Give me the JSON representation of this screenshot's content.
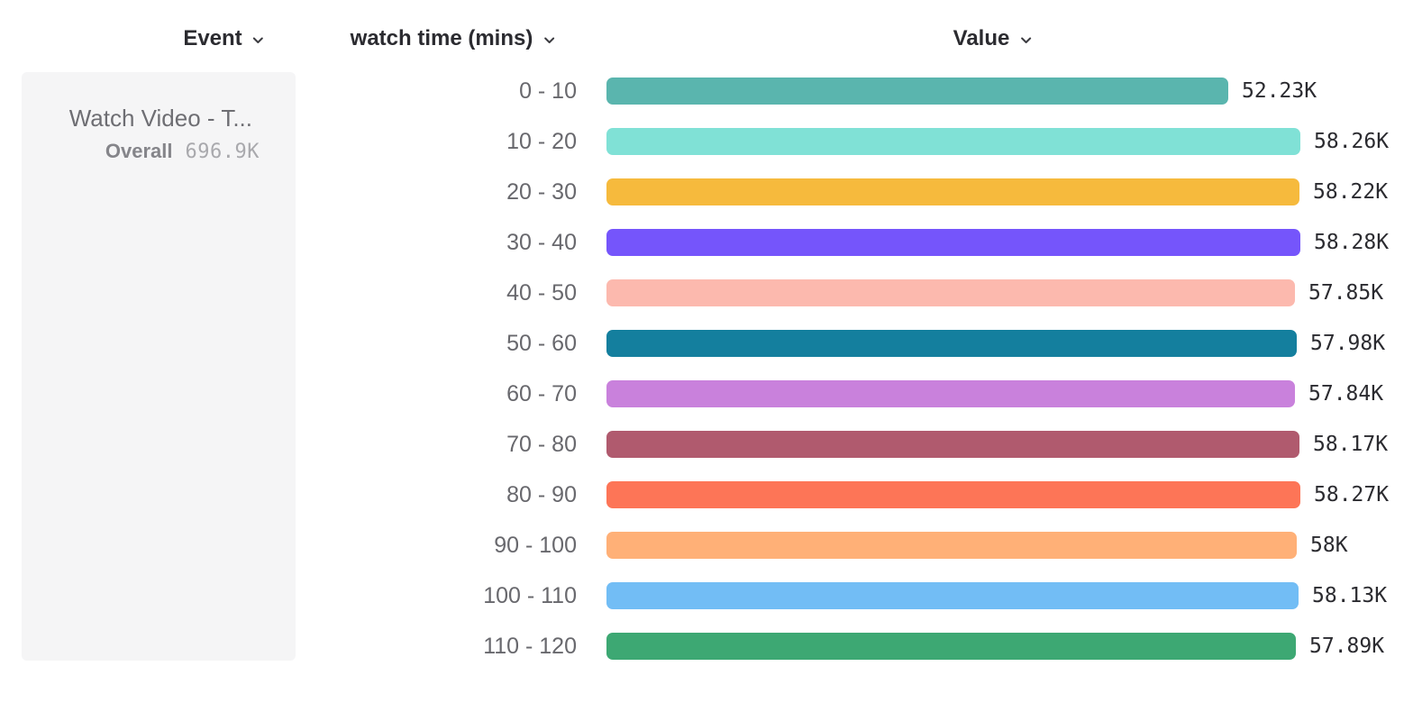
{
  "columns": [
    {
      "id": "event",
      "label": "Event"
    },
    {
      "id": "breakdown",
      "label": "watch time (mins)"
    },
    {
      "id": "value",
      "label": "Value"
    }
  ],
  "legend": {
    "event_name": "Watch Video - T...",
    "overall_label": "Overall",
    "overall_value": "696.9K"
  },
  "chart_data": {
    "type": "bar",
    "orientation": "horizontal",
    "title": "",
    "xlabel": "watch time (mins)",
    "ylabel": "Value",
    "xlim": [
      0,
      58280
    ],
    "grid": false,
    "categories": [
      "0 - 10",
      "10 - 20",
      "20 - 30",
      "30 - 40",
      "40 - 50",
      "50 - 60",
      "60 - 70",
      "70 - 80",
      "80 - 90",
      "90 - 100",
      "100 - 110",
      "110 - 120"
    ],
    "values": [
      52230,
      58260,
      58220,
      58280,
      57850,
      57980,
      57840,
      58170,
      58270,
      58000,
      58130,
      57890
    ],
    "value_labels": [
      "52.23K",
      "58.26K",
      "58.22K",
      "58.28K",
      "57.85K",
      "57.98K",
      "57.84K",
      "58.17K",
      "58.27K",
      "58K",
      "58.13K",
      "57.89K"
    ],
    "bar_colors": [
      "#5ab5ae",
      "#80e1d6",
      "#f6ba3d",
      "#7555fb",
      "#fcb9ae",
      "#147f9e",
      "#c981dc",
      "#b05a6e",
      "#fd7557",
      "#ffb077",
      "#72bdf5",
      "#3da873"
    ]
  },
  "theme": {
    "header_text": "#2b2b30",
    "category_text": "#68686d",
    "value_text": "#2b2b30",
    "card_background": "#f5f5f6",
    "card_title_text": "#6e6e73",
    "overall_label_text": "#85858a",
    "overall_value_text": "#a9a9ad"
  }
}
